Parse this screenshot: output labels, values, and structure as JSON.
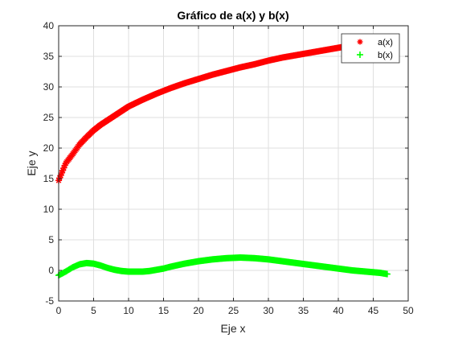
{
  "chart_data": {
    "type": "scatter",
    "title": "Gráfico de a(x) y b(x)",
    "xlabel": "Eje x",
    "ylabel": "Eje y",
    "xlim": [
      0,
      50
    ],
    "ylim": [
      -5,
      40
    ],
    "xticks": [
      "0",
      "5",
      "10",
      "15",
      "20",
      "25",
      "30",
      "35",
      "40",
      "45",
      "50"
    ],
    "yticks": [
      "-5",
      "0",
      "5",
      "10",
      "15",
      "20",
      "25",
      "30",
      "35",
      "40"
    ],
    "grid": true,
    "legend_position": "top-right",
    "series": [
      {
        "name": "a(x)",
        "marker": "*",
        "color": "#ff0000",
        "x": [
          0,
          1,
          2,
          3,
          4,
          5,
          6,
          8,
          10,
          12,
          14,
          16,
          18,
          20,
          22,
          24,
          26,
          28,
          30,
          32,
          34,
          36,
          38,
          40,
          42,
          44,
          46,
          47
        ],
        "y": [
          14.7,
          17.5,
          19.0,
          20.6,
          21.8,
          22.9,
          23.8,
          25.3,
          26.8,
          27.9,
          28.9,
          29.8,
          30.6,
          31.3,
          32.0,
          32.6,
          33.2,
          33.7,
          34.3,
          34.8,
          35.2,
          35.6,
          36.0,
          36.4,
          36.8,
          37.2,
          37.5,
          37.7
        ]
      },
      {
        "name": "b(x)",
        "marker": "+",
        "color": "#00ff00",
        "x": [
          0,
          1,
          2,
          3,
          4,
          5,
          6,
          7,
          8,
          9,
          10,
          11,
          12,
          13,
          14,
          15,
          16,
          18,
          20,
          22,
          24,
          26,
          28,
          30,
          32,
          34,
          36,
          38,
          40,
          42,
          44,
          46,
          47
        ],
        "y": [
          -0.8,
          -0.2,
          0.5,
          1.0,
          1.2,
          1.1,
          0.8,
          0.4,
          0.1,
          -0.1,
          -0.2,
          -0.2,
          -0.2,
          -0.1,
          0.1,
          0.3,
          0.6,
          1.1,
          1.5,
          1.8,
          2.0,
          2.1,
          2.0,
          1.8,
          1.5,
          1.2,
          0.9,
          0.6,
          0.3,
          0.0,
          -0.2,
          -0.4,
          -0.6
        ]
      }
    ]
  }
}
